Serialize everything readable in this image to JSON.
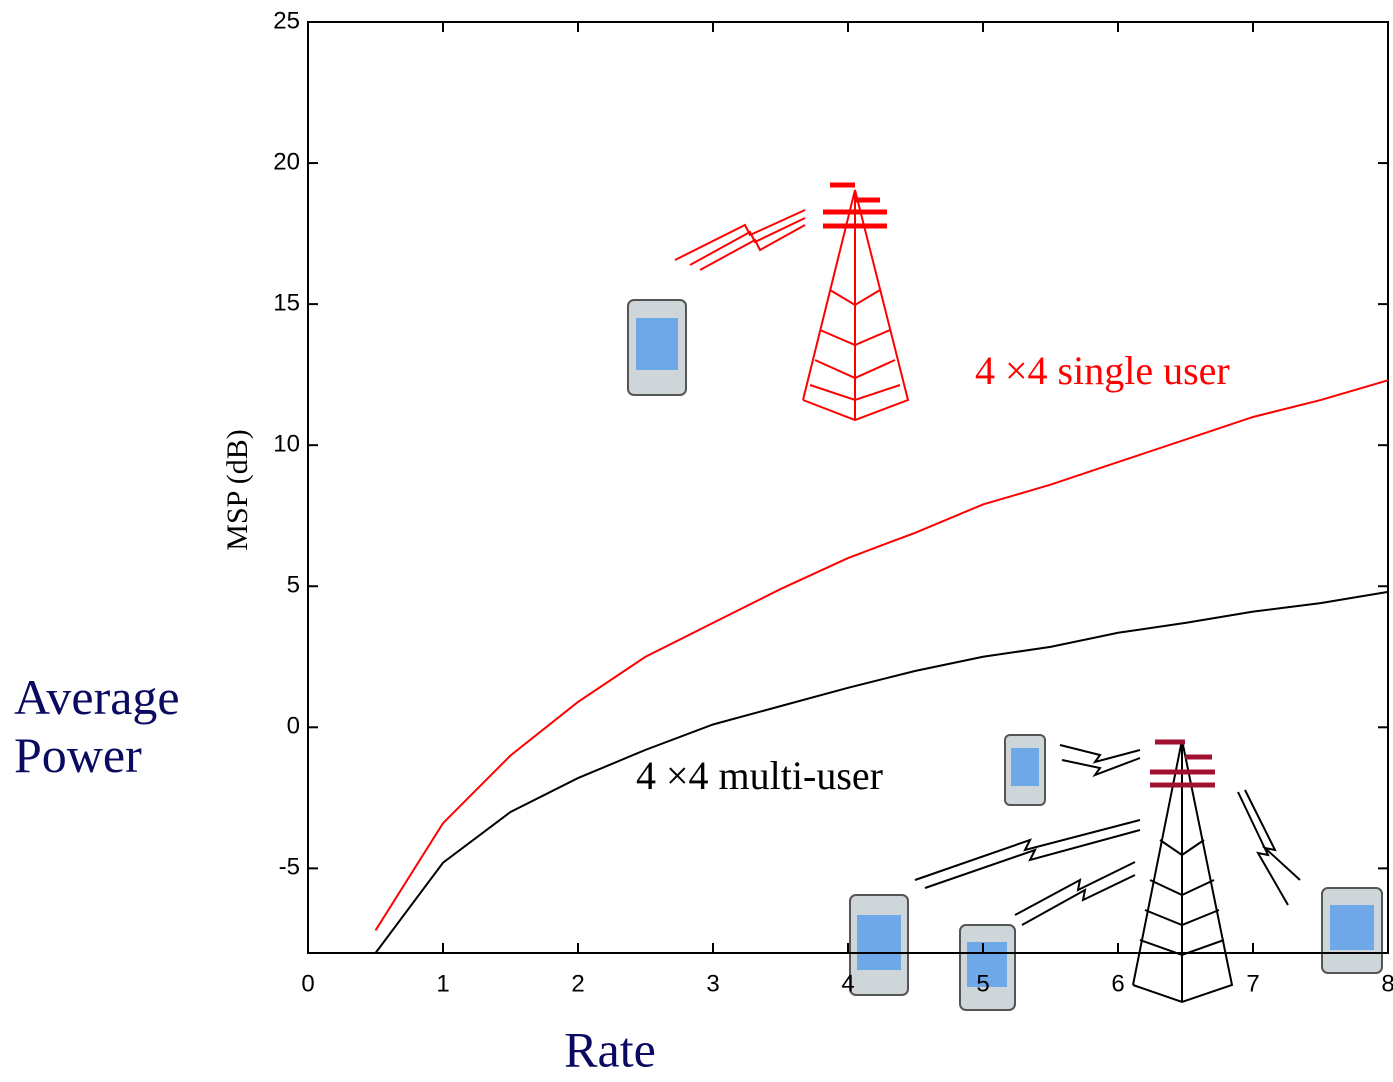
{
  "chart_data": {
    "type": "line",
    "y_label": "MSP (dB)",
    "x_label": "Rate",
    "side_label": "Average Power",
    "x": [
      0.5,
      1,
      1.5,
      2,
      2.5,
      3,
      3.5,
      4,
      4.5,
      5,
      5.5,
      6,
      6.5,
      7,
      7.5,
      8
    ],
    "series": [
      {
        "name": "4 ×4 single user",
        "color": "#ff0000",
        "values": [
          -7.2,
          -3.4,
          -1.0,
          0.9,
          2.5,
          3.7,
          4.9,
          6.0,
          6.9,
          7.9,
          8.6,
          9.4,
          10.2,
          11.0,
          11.6,
          12.3
        ]
      },
      {
        "name": "4 ×4 multi-user",
        "color": "#000000",
        "values": [
          -8.0,
          -4.8,
          -3.0,
          -1.8,
          -0.8,
          0.1,
          0.75,
          1.4,
          2.0,
          2.5,
          2.85,
          3.35,
          3.7,
          4.1,
          4.4,
          4.8
        ]
      }
    ],
    "xlim": [
      0,
      8
    ],
    "ylim": [
      -8,
      25
    ],
    "xticks": [
      0,
      1,
      2,
      3,
      4,
      5,
      6,
      7,
      8
    ],
    "yticks": [
      -5,
      0,
      5,
      10,
      15,
      20,
      25
    ],
    "grid": false
  }
}
